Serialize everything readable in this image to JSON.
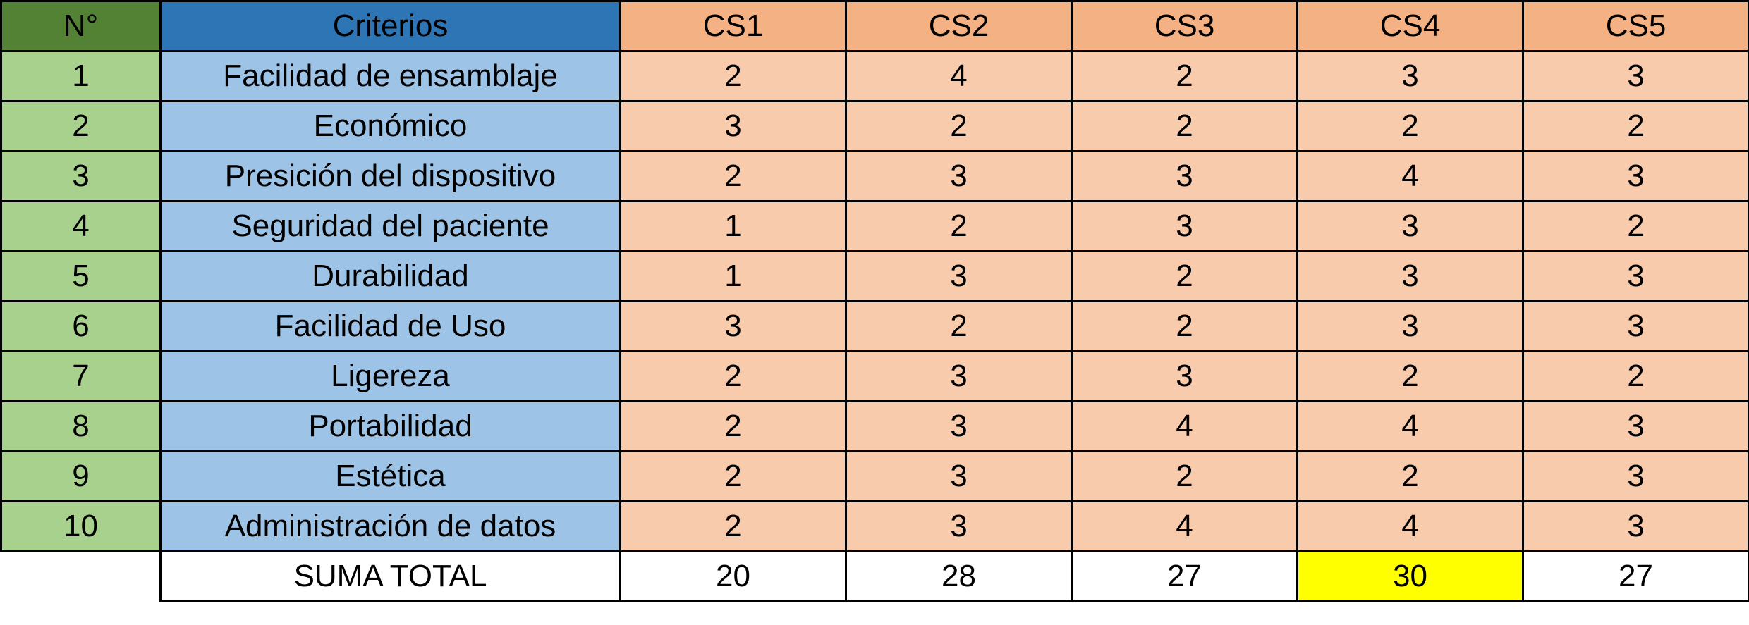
{
  "headers": {
    "num": "N°",
    "criteria": "Criterios",
    "cs": [
      "CS1",
      "CS2",
      "CS3",
      "CS4",
      "CS5"
    ]
  },
  "rows": [
    {
      "n": "1",
      "criterion": "Facilidad de ensamblaje",
      "values": [
        "2",
        "4",
        "2",
        "3",
        "3"
      ]
    },
    {
      "n": "2",
      "criterion": "Económico",
      "values": [
        "3",
        "2",
        "2",
        "2",
        "2"
      ]
    },
    {
      "n": "3",
      "criterion": "Presición del dispositivo",
      "values": [
        "2",
        "3",
        "3",
        "4",
        "3"
      ]
    },
    {
      "n": "4",
      "criterion": "Seguridad del paciente",
      "values": [
        "1",
        "2",
        "3",
        "3",
        "2"
      ]
    },
    {
      "n": "5",
      "criterion": "Durabilidad",
      "values": [
        "1",
        "3",
        "2",
        "3",
        "3"
      ]
    },
    {
      "n": "6",
      "criterion": "Facilidad de Uso",
      "values": [
        "3",
        "2",
        "2",
        "3",
        "3"
      ]
    },
    {
      "n": "7",
      "criterion": "Ligereza",
      "values": [
        "2",
        "3",
        "3",
        "2",
        "2"
      ]
    },
    {
      "n": "8",
      "criterion": "Portabilidad",
      "values": [
        "2",
        "3",
        "4",
        "4",
        "3"
      ]
    },
    {
      "n": "9",
      "criterion": "Estética",
      "values": [
        "2",
        "3",
        "2",
        "2",
        "3"
      ]
    },
    {
      "n": "10",
      "criterion": "Administración de datos",
      "values": [
        "2",
        "3",
        "4",
        "4",
        "3"
      ]
    }
  ],
  "total": {
    "label": "SUMA TOTAL",
    "values": [
      "20",
      "28",
      "27",
      "30",
      "27"
    ],
    "highlight_color": "#ffff00"
  },
  "colors": {
    "num_header": "#548235",
    "num_body": "#a9d18e",
    "criteria_header": "#2e75b6",
    "criteria_body": "#9dc3e6",
    "cs_header": "#f4b183",
    "cs_body": "#f8cbad"
  }
}
